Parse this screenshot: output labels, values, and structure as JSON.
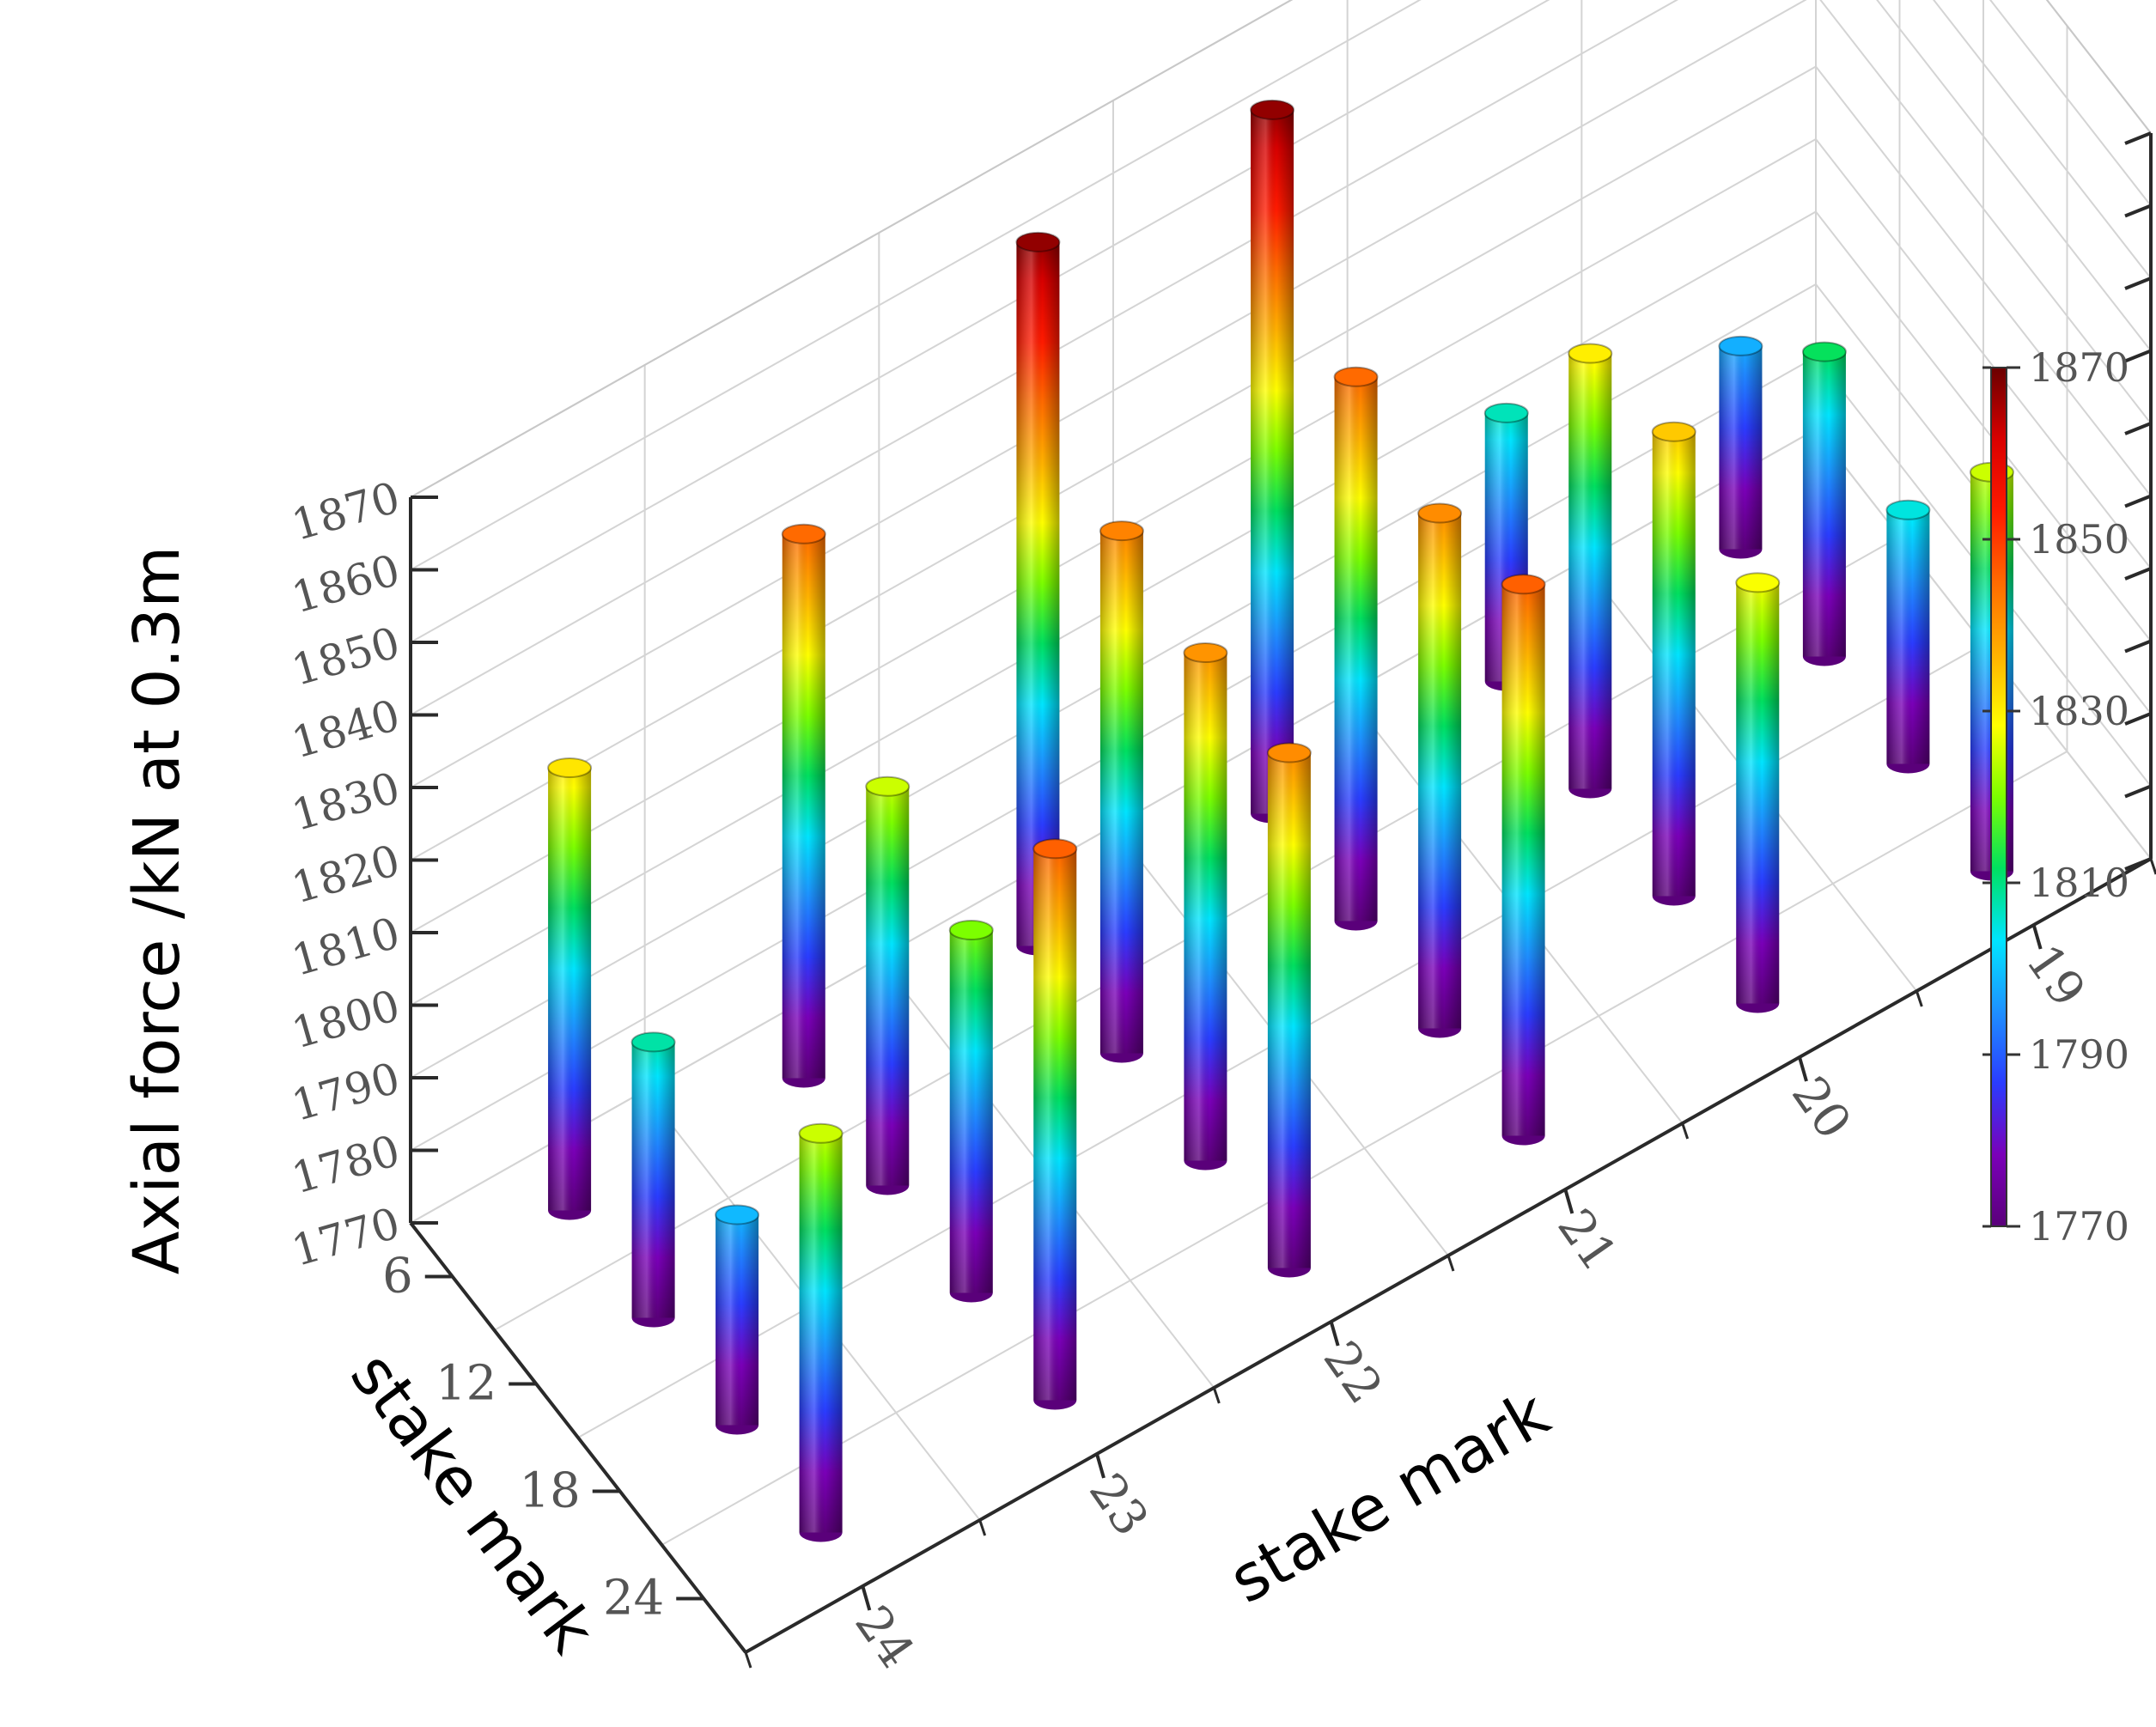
{
  "chart_data": {
    "type": "bar3d",
    "zlabel": "Axial force /kN at 0.3m",
    "xlabel": "stake mark",
    "ylabel": "stake mark",
    "x_ticks": [
      "19",
      "20",
      "21",
      "22",
      "23",
      "24"
    ],
    "y_ticks": [
      "6",
      "12",
      "18",
      "24"
    ],
    "z_ticks": [
      "1770",
      "1780",
      "1790",
      "1800",
      "1810",
      "1820",
      "1830",
      "1840",
      "1850",
      "1860",
      "1870"
    ],
    "zlim": [
      1770,
      1870
    ],
    "colorbar": {
      "ticks": [
        "1770",
        "1790",
        "1810",
        "1830",
        "1850",
        "1870"
      ],
      "range": [
        1770,
        1870
      ],
      "colors": [
        "#5a007a",
        "#7a00b8",
        "#2a3cff",
        "#1e90ff",
        "#00e5ff",
        "#00e060",
        "#7cff00",
        "#ffff00",
        "#ffb000",
        "#ff6a00",
        "#ff1a00",
        "#d80000",
        "#6a0000"
      ]
    },
    "grid": true,
    "bars": [
      {
        "x": "24",
        "y": "6",
        "value": 1831
      },
      {
        "x": "24",
        "y": "12",
        "value": 1808
      },
      {
        "x": "24",
        "y": "18",
        "value": 1799
      },
      {
        "x": "24",
        "y": "24",
        "value": 1825
      },
      {
        "x": "23",
        "y": "6",
        "value": 1845
      },
      {
        "x": "23",
        "y": "12",
        "value": 1825
      },
      {
        "x": "23",
        "y": "18",
        "value": 1820
      },
      {
        "x": "23",
        "y": "24",
        "value": 1846
      },
      {
        "x": "22",
        "y": "6",
        "value": 1867
      },
      {
        "x": "22",
        "y": "12",
        "value": 1842
      },
      {
        "x": "22",
        "y": "18",
        "value": 1840
      },
      {
        "x": "22",
        "y": "24",
        "value": 1841
      },
      {
        "x": "21",
        "y": "6",
        "value": 1867
      },
      {
        "x": "21",
        "y": "12",
        "value": 1845
      },
      {
        "x": "21",
        "y": "18",
        "value": 1841
      },
      {
        "x": "21",
        "y": "24",
        "value": 1846
      },
      {
        "x": "20",
        "y": "6",
        "value": 1807
      },
      {
        "x": "20",
        "y": "12",
        "value": 1830
      },
      {
        "x": "20",
        "y": "18",
        "value": 1834
      },
      {
        "x": "20",
        "y": "24",
        "value": 1828
      },
      {
        "x": "19",
        "y": "6",
        "value": 1798
      },
      {
        "x": "19",
        "y": "12",
        "value": 1812
      },
      {
        "x": "19",
        "y": "18",
        "value": 1805
      },
      {
        "x": "19",
        "y": "24",
        "value": 1825
      }
    ]
  }
}
